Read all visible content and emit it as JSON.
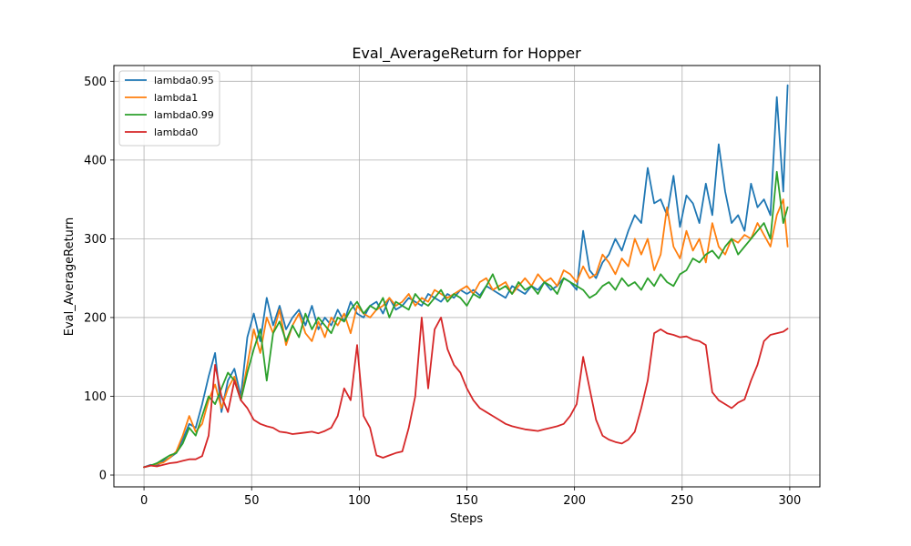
{
  "chart_data": {
    "type": "line",
    "title": "Eval_AverageReturn for Hopper",
    "xlabel": "Steps",
    "ylabel": "Eval_AverageReturn",
    "xlim": [
      -14,
      314
    ],
    "ylim": [
      -15,
      520
    ],
    "xticks": [
      0,
      50,
      100,
      150,
      200,
      250,
      300
    ],
    "yticks": [
      0,
      100,
      200,
      300,
      400,
      500
    ],
    "grid": true,
    "legend_position": "top-left",
    "colors": {
      "lambda0.95": "#1f77b4",
      "lambda1": "#ff7f0e",
      "lambda0.99": "#2ca02c",
      "lambda0": "#d62728"
    },
    "series": [
      {
        "name": "lambda0.95",
        "color": "#1f77b4",
        "x": [
          0,
          3,
          6,
          9,
          12,
          15,
          18,
          21,
          24,
          27,
          30,
          33,
          36,
          39,
          42,
          45,
          48,
          51,
          54,
          57,
          60,
          63,
          66,
          69,
          72,
          75,
          78,
          81,
          84,
          87,
          90,
          93,
          96,
          99,
          102,
          105,
          108,
          111,
          114,
          117,
          120,
          123,
          126,
          129,
          132,
          135,
          138,
          141,
          144,
          147,
          150,
          153,
          156,
          159,
          162,
          165,
          168,
          171,
          174,
          177,
          180,
          183,
          186,
          189,
          192,
          195,
          198,
          201,
          204,
          207,
          210,
          213,
          216,
          219,
          222,
          225,
          228,
          231,
          234,
          237,
          240,
          243,
          246,
          249,
          252,
          255,
          258,
          261,
          264,
          267,
          270,
          273,
          276,
          279,
          282,
          285,
          288,
          291,
          294,
          297,
          299
        ],
        "y": [
          10,
          13,
          12,
          18,
          22,
          28,
          45,
          65,
          60,
          90,
          125,
          155,
          80,
          120,
          135,
          100,
          175,
          205,
          170,
          225,
          190,
          215,
          185,
          200,
          210,
          190,
          215,
          185,
          200,
          190,
          210,
          195,
          220,
          205,
          200,
          215,
          220,
          205,
          225,
          210,
          215,
          225,
          220,
          215,
          230,
          225,
          220,
          230,
          225,
          235,
          230,
          235,
          228,
          240,
          235,
          230,
          225,
          240,
          235,
          230,
          240,
          235,
          245,
          235,
          240,
          250,
          245,
          235,
          310,
          260,
          250,
          270,
          280,
          300,
          285,
          310,
          330,
          320,
          390,
          345,
          350,
          330,
          380,
          315,
          355,
          345,
          320,
          370,
          330,
          420,
          360,
          320,
          330,
          310,
          370,
          340,
          350,
          330,
          480,
          360,
          495
        ]
      },
      {
        "name": "lambda1",
        "color": "#ff7f0e",
        "x": [
          0,
          3,
          6,
          9,
          12,
          15,
          18,
          21,
          24,
          27,
          30,
          33,
          36,
          39,
          42,
          45,
          48,
          51,
          54,
          57,
          60,
          63,
          66,
          69,
          72,
          75,
          78,
          81,
          84,
          87,
          90,
          93,
          96,
          99,
          102,
          105,
          108,
          111,
          114,
          117,
          120,
          123,
          126,
          129,
          132,
          135,
          138,
          141,
          144,
          147,
          150,
          153,
          156,
          159,
          162,
          165,
          168,
          171,
          174,
          177,
          180,
          183,
          186,
          189,
          192,
          195,
          198,
          201,
          204,
          207,
          210,
          213,
          216,
          219,
          222,
          225,
          228,
          231,
          234,
          237,
          240,
          243,
          246,
          249,
          252,
          255,
          258,
          261,
          264,
          267,
          270,
          273,
          276,
          279,
          282,
          285,
          288,
          291,
          294,
          297,
          299
        ],
        "y": [
          10,
          12,
          14,
          16,
          22,
          30,
          50,
          75,
          55,
          65,
          95,
          115,
          85,
          110,
          125,
          95,
          140,
          185,
          155,
          200,
          180,
          210,
          165,
          190,
          205,
          180,
          170,
          195,
          175,
          200,
          190,
          205,
          180,
          215,
          205,
          200,
          210,
          215,
          225,
          215,
          220,
          230,
          215,
          225,
          220,
          235,
          230,
          225,
          230,
          235,
          240,
          230,
          245,
          250,
          235,
          240,
          245,
          230,
          240,
          250,
          240,
          255,
          245,
          250,
          240,
          260,
          255,
          245,
          265,
          250,
          255,
          280,
          270,
          255,
          275,
          265,
          300,
          280,
          300,
          260,
          280,
          340,
          290,
          275,
          310,
          285,
          300,
          270,
          320,
          290,
          280,
          300,
          295,
          305,
          300,
          320,
          305,
          290,
          330,
          350,
          290
        ]
      },
      {
        "name": "lambda0.99",
        "color": "#2ca02c",
        "x": [
          0,
          3,
          6,
          9,
          12,
          15,
          18,
          21,
          24,
          27,
          30,
          33,
          36,
          39,
          42,
          45,
          48,
          51,
          54,
          57,
          60,
          63,
          66,
          69,
          72,
          75,
          78,
          81,
          84,
          87,
          90,
          93,
          96,
          99,
          102,
          105,
          108,
          111,
          114,
          117,
          120,
          123,
          126,
          129,
          132,
          135,
          138,
          141,
          144,
          147,
          150,
          153,
          156,
          159,
          162,
          165,
          168,
          171,
          174,
          177,
          180,
          183,
          186,
          189,
          192,
          195,
          198,
          201,
          204,
          207,
          210,
          213,
          216,
          219,
          222,
          225,
          228,
          231,
          234,
          237,
          240,
          243,
          246,
          249,
          252,
          255,
          258,
          261,
          264,
          267,
          270,
          273,
          276,
          279,
          282,
          285,
          288,
          291,
          294,
          297,
          299
        ],
        "y": [
          10,
          12,
          15,
          20,
          25,
          28,
          40,
          60,
          50,
          75,
          100,
          90,
          110,
          130,
          120,
          95,
          130,
          160,
          185,
          120,
          180,
          195,
          170,
          190,
          175,
          205,
          185,
          200,
          190,
          180,
          200,
          195,
          210,
          220,
          205,
          215,
          210,
          225,
          200,
          220,
          215,
          210,
          230,
          220,
          215,
          225,
          235,
          220,
          230,
          225,
          215,
          230,
          225,
          240,
          255,
          235,
          240,
          230,
          245,
          235,
          240,
          230,
          245,
          240,
          230,
          250,
          245,
          240,
          235,
          225,
          230,
          240,
          245,
          235,
          250,
          240,
          245,
          235,
          250,
          240,
          255,
          245,
          240,
          255,
          260,
          275,
          270,
          280,
          285,
          275,
          290,
          300,
          280,
          290,
          300,
          310,
          320,
          300,
          385,
          320,
          340
        ]
      },
      {
        "name": "lambda0",
        "color": "#d62728",
        "x": [
          0,
          3,
          6,
          9,
          12,
          15,
          18,
          21,
          24,
          27,
          30,
          33,
          36,
          39,
          42,
          45,
          48,
          51,
          54,
          57,
          60,
          63,
          66,
          69,
          72,
          75,
          78,
          81,
          84,
          87,
          90,
          93,
          96,
          99,
          102,
          105,
          108,
          111,
          114,
          117,
          120,
          123,
          126,
          129,
          132,
          135,
          138,
          141,
          144,
          147,
          150,
          153,
          156,
          159,
          162,
          165,
          168,
          171,
          174,
          177,
          180,
          183,
          186,
          189,
          192,
          195,
          198,
          201,
          204,
          207,
          210,
          213,
          216,
          219,
          222,
          225,
          228,
          231,
          234,
          237,
          240,
          243,
          246,
          249,
          252,
          255,
          258,
          261,
          264,
          267,
          270,
          273,
          276,
          279,
          282,
          285,
          288,
          291,
          294,
          297,
          299
        ],
        "y": [
          10,
          12,
          11,
          13,
          15,
          16,
          18,
          20,
          20,
          24,
          50,
          140,
          100,
          80,
          120,
          95,
          85,
          70,
          65,
          62,
          60,
          55,
          54,
          52,
          53,
          54,
          55,
          53,
          56,
          60,
          75,
          110,
          95,
          165,
          75,
          60,
          25,
          22,
          25,
          28,
          30,
          60,
          100,
          200,
          110,
          185,
          200,
          160,
          140,
          130,
          110,
          95,
          85,
          80,
          75,
          70,
          65,
          62,
          60,
          58,
          57,
          56,
          58,
          60,
          62,
          65,
          75,
          90,
          150,
          110,
          70,
          50,
          45,
          42,
          40,
          45,
          55,
          85,
          120,
          180,
          185,
          180,
          178,
          175,
          176,
          172,
          170,
          165,
          105,
          95,
          90,
          85,
          92,
          96,
          120,
          140,
          170,
          178,
          180,
          182,
          186
        ]
      }
    ]
  }
}
